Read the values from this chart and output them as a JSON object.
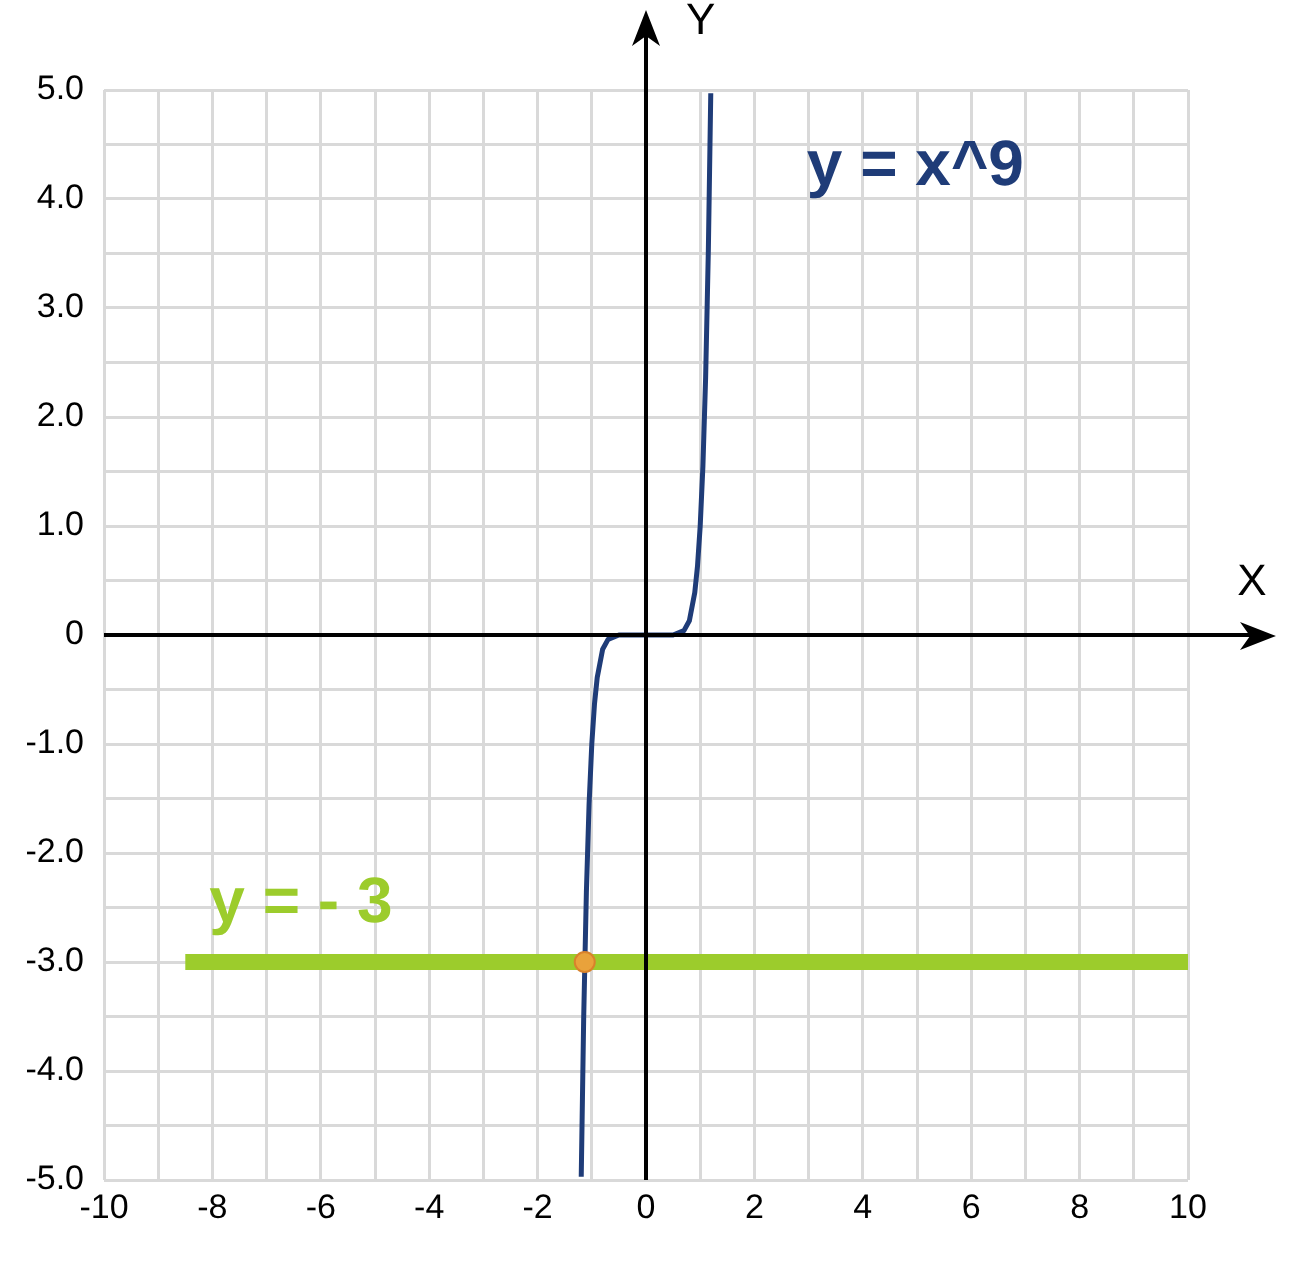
{
  "chart_data": {
    "type": "line",
    "xlabel": "X",
    "ylabel": "Y",
    "xlim": [
      -10,
      10
    ],
    "ylim": [
      -5,
      5
    ],
    "xticks": [
      -10,
      {
        "value": -9,
        "label": null
      },
      -8,
      {
        "value": -7,
        "label": null
      },
      -6,
      {
        "value": -5,
        "label": null
      },
      -4,
      {
        "value": -3,
        "label": null
      },
      -2,
      {
        "value": -1,
        "label": null
      },
      0,
      {
        "value": 1,
        "label": null
      },
      2,
      {
        "value": 3,
        "label": null
      },
      4,
      {
        "value": 5,
        "label": null
      },
      6,
      {
        "value": 7,
        "label": null
      },
      8,
      {
        "value": 9,
        "label": null
      },
      10
    ],
    "yticks": [
      {
        "value": -5,
        "label": "-5.0"
      },
      {
        "value": -4.5,
        "label": null
      },
      {
        "value": -4,
        "label": "-4.0"
      },
      {
        "value": -3.5,
        "label": null
      },
      {
        "value": -3,
        "label": "-3.0"
      },
      {
        "value": -2.5,
        "label": null
      },
      {
        "value": -2,
        "label": "-2.0"
      },
      {
        "value": -1.5,
        "label": null
      },
      {
        "value": -1,
        "label": "-1.0"
      },
      {
        "value": -0.5,
        "label": null
      },
      0,
      {
        "value": 0.5,
        "label": null
      },
      {
        "value": 1,
        "label": "1.0"
      },
      {
        "value": 1.5,
        "label": null
      },
      {
        "value": 2,
        "label": "2.0"
      },
      {
        "value": 2.5,
        "label": null
      },
      {
        "value": 3,
        "label": "3.0"
      },
      {
        "value": 3.5,
        "label": null
      },
      {
        "value": 4,
        "label": "4.0"
      },
      {
        "value": 4.5,
        "label": null
      },
      {
        "value": 5,
        "label": "5.0"
      }
    ],
    "grid": true,
    "legend": false,
    "marker": "none",
    "series": [
      {
        "name": "y = x^9",
        "color": "#1f3c78",
        "x": [
          -1.195,
          -1.15,
          -1.1,
          -1.05,
          -1,
          -0.95,
          -0.9,
          -0.8,
          -0.7,
          -0.5,
          0,
          0.5,
          0.7,
          0.8,
          0.9,
          0.95,
          1,
          1.05,
          1.1,
          1.15,
          1.195
        ],
        "values": [
          -4.97,
          -3.52,
          -2.36,
          -1.55,
          -1,
          -0.63,
          -0.39,
          -0.13,
          -0.04,
          0,
          0,
          0,
          0.04,
          0.13,
          0.39,
          0.63,
          1,
          1.55,
          2.36,
          3.52,
          4.97
        ]
      },
      {
        "name": "y = - 3",
        "color": "#9ccc2c",
        "x": [
          -8.5,
          10
        ],
        "values": [
          -3,
          -3
        ]
      },
      {
        "type": "scatter",
        "color": "#e9a23b",
        "marker": "circle",
        "x": [
          -1.13
        ],
        "values": [
          -3
        ]
      }
    ]
  }
}
